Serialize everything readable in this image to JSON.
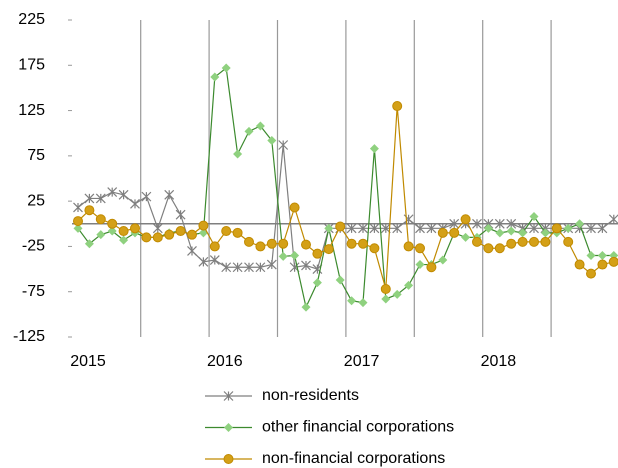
{
  "chart_data": {
    "type": "line",
    "categories": [
      "2015",
      null,
      null,
      null,
      null,
      null,
      null,
      null,
      null,
      null,
      null,
      null,
      "2016",
      null,
      null,
      null,
      null,
      null,
      null,
      null,
      null,
      null,
      null,
      null,
      "2017",
      null,
      null,
      null,
      null,
      null,
      null,
      null,
      null,
      null,
      null,
      null,
      "2018",
      null,
      null,
      null,
      null,
      null,
      null,
      null,
      null,
      null,
      null,
      null
    ],
    "series": [
      {
        "name": "non-residents",
        "color": "#7f7f7f",
        "marker": "asterisk",
        "values": [
          18,
          28,
          28,
          35,
          32,
          22,
          30,
          -5,
          32,
          10,
          -30,
          -42,
          -40,
          -48,
          -48,
          -48,
          -48,
          -45,
          87,
          -48,
          -46,
          -50,
          -5,
          -5,
          -5,
          -5,
          -5,
          -5,
          -5,
          5,
          -5,
          -5,
          -5,
          0,
          0,
          0,
          0,
          0,
          0,
          -5,
          -5,
          -5,
          -5,
          -5,
          -5,
          -5,
          -5,
          5
        ]
      },
      {
        "name": "other financial corporations",
        "color": "#8fd17f",
        "line_color": "#3c8a2e",
        "marker": "diamond",
        "values": [
          -5,
          -22,
          -12,
          -8,
          -18,
          -10,
          -15,
          -15,
          -10,
          -8,
          -12,
          -10,
          162,
          172,
          77,
          102,
          108,
          92,
          -36,
          -35,
          -92,
          -65,
          -5,
          -62,
          -85,
          -87,
          83,
          -83,
          -78,
          -68,
          -45,
          -45,
          -40,
          -10,
          -15,
          -15,
          -5,
          -10,
          -8,
          -10,
          8,
          -10,
          -10,
          -5,
          0,
          -35,
          -35,
          -35
        ]
      },
      {
        "name": "non-financial corporations",
        "color": "#d4a017",
        "line_color": "#c08a00",
        "marker": "circle",
        "values": [
          3,
          15,
          5,
          0,
          -8,
          -5,
          -15,
          -15,
          -12,
          -8,
          -12,
          -2,
          -25,
          -8,
          -10,
          -20,
          -25,
          -22,
          -22,
          18,
          -23,
          -33,
          -28,
          -3,
          -22,
          -22,
          -27,
          -72,
          130,
          -25,
          -27,
          -48,
          -10,
          -10,
          5,
          -20,
          -27,
          -27,
          -22,
          -20,
          -20,
          -20,
          -5,
          -20,
          -45,
          -55,
          -45,
          -42
        ]
      }
    ],
    "ylim": [
      -125,
      225
    ],
    "yticks": [
      -125,
      -75,
      -25,
      25,
      75,
      125,
      175,
      225
    ]
  }
}
